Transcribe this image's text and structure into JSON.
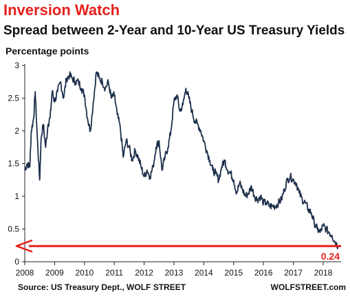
{
  "site_label": "WOLFSTREET.com",
  "chart_data": {
    "type": "line",
    "title": "Inversion Watch",
    "subtitle": "Spread between 2-Year and 10-Year US Treasury Yields",
    "ylabel": "Percentage points",
    "xlabel": "",
    "source": "Source: US Treasury Dept., WOLF STREET",
    "ylim": [
      0,
      3
    ],
    "yticks": [
      0,
      0.5,
      1,
      1.5,
      2,
      2.5,
      3
    ],
    "ytick_labels": [
      "0",
      "0.5",
      "1",
      "1.5",
      "2",
      "2.5",
      "3"
    ],
    "xlim": [
      2008,
      2018.6
    ],
    "xticks": [
      2008,
      2009,
      2010,
      2011,
      2012,
      2013,
      2014,
      2015,
      2016,
      2017,
      2018
    ],
    "xtick_labels": [
      "2008",
      "2009",
      "2010",
      "2011",
      "2012",
      "2013",
      "2014",
      "2015",
      "2016",
      "2017",
      "2018"
    ],
    "grid": false,
    "line_color": "#1c2e4a",
    "reference_line": {
      "y": 0.24,
      "label": "0.24",
      "color": "#e5201b"
    },
    "series": [
      {
        "x": [
          2008.0,
          2008.08,
          2008.17,
          2008.22,
          2008.3,
          2008.35,
          2008.42,
          2008.5,
          2008.55,
          2008.62,
          2008.7,
          2008.78,
          2008.85,
          2008.92,
          2009.0,
          2009.1,
          2009.2,
          2009.3,
          2009.4,
          2009.5,
          2009.6,
          2009.7,
          2009.8,
          2009.9,
          2010.0,
          2010.1,
          2010.2,
          2010.3,
          2010.4,
          2010.5,
          2010.6,
          2010.7,
          2010.8,
          2010.9,
          2011.0,
          2011.1,
          2011.2,
          2011.3,
          2011.4,
          2011.5,
          2011.6,
          2011.7,
          2011.8,
          2011.9,
          2012.0,
          2012.1,
          2012.2,
          2012.3,
          2012.4,
          2012.5,
          2012.6,
          2012.7,
          2012.8,
          2012.9,
          2013.0,
          2013.1,
          2013.2,
          2013.3,
          2013.4,
          2013.5,
          2013.6,
          2013.7,
          2013.8,
          2013.9,
          2014.0,
          2014.1,
          2014.2,
          2014.3,
          2014.4,
          2014.5,
          2014.6,
          2014.7,
          2014.8,
          2014.9,
          2015.0,
          2015.1,
          2015.2,
          2015.3,
          2015.4,
          2015.5,
          2015.6,
          2015.7,
          2015.8,
          2015.9,
          2016.0,
          2016.1,
          2016.2,
          2016.3,
          2016.4,
          2016.5,
          2016.6,
          2016.7,
          2016.8,
          2016.9,
          2017.0,
          2017.1,
          2017.2,
          2017.3,
          2017.4,
          2017.5,
          2017.6,
          2017.7,
          2017.8,
          2017.9,
          2018.0,
          2018.1,
          2018.2,
          2018.3,
          2018.4,
          2018.5
        ],
        "values": [
          1.4,
          1.5,
          1.45,
          2.0,
          2.2,
          2.6,
          1.9,
          1.25,
          1.9,
          2.1,
          1.75,
          2.1,
          2.2,
          2.6,
          2.45,
          2.6,
          2.75,
          2.5,
          2.8,
          2.85,
          2.8,
          2.75,
          2.75,
          2.65,
          2.55,
          2.2,
          2.0,
          2.45,
          2.9,
          2.8,
          2.75,
          2.65,
          2.75,
          2.5,
          2.55,
          2.25,
          2.05,
          1.6,
          1.85,
          1.75,
          1.55,
          1.7,
          1.6,
          1.45,
          1.3,
          1.4,
          1.3,
          1.45,
          1.75,
          1.85,
          1.4,
          1.6,
          1.75,
          2.0,
          2.45,
          2.55,
          2.3,
          2.4,
          2.65,
          2.5,
          2.3,
          2.15,
          2.1,
          2.0,
          1.85,
          1.7,
          1.55,
          1.4,
          1.35,
          1.25,
          1.45,
          1.55,
          1.4,
          1.35,
          1.25,
          1.05,
          1.2,
          1.1,
          1.0,
          1.05,
          1.15,
          1.0,
          0.95,
          1.0,
          0.9,
          0.9,
          0.85,
          0.85,
          0.85,
          0.9,
          0.95,
          1.1,
          1.25,
          1.3,
          1.25,
          1.2,
          1.05,
          0.95,
          0.9,
          0.8,
          0.75,
          0.6,
          0.5,
          0.45,
          0.55,
          0.5,
          0.45,
          0.4,
          0.3,
          0.24
        ]
      }
    ]
  }
}
